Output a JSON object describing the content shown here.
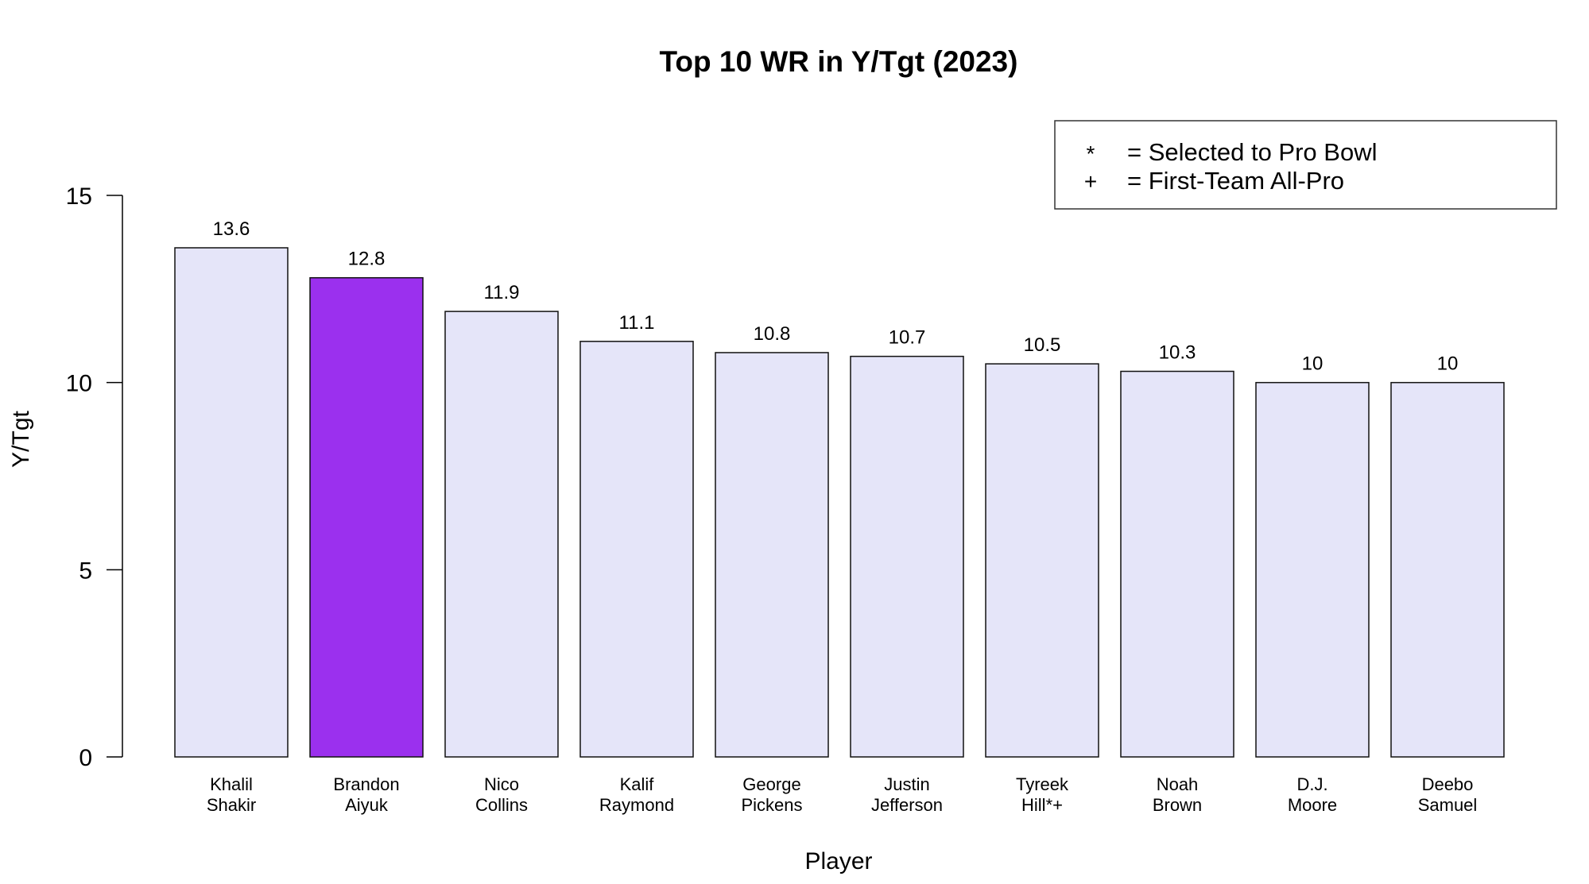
{
  "chart_data": {
    "type": "bar",
    "title": "Top 10 WR in Y/Tgt (2023)",
    "xlabel": "Player",
    "ylabel": "Y/Tgt",
    "ylim": [
      0,
      15
    ],
    "yticks": [
      0,
      5,
      10,
      15
    ],
    "categories": [
      [
        "Khalil",
        "Shakir"
      ],
      [
        "Brandon",
        "Aiyuk"
      ],
      [
        "Nico",
        "Collins"
      ],
      [
        "Kalif",
        "Raymond"
      ],
      [
        "George",
        "Pickens"
      ],
      [
        "Justin",
        "Jefferson"
      ],
      [
        "Tyreek",
        "Hill*+"
      ],
      [
        "Noah",
        "Brown"
      ],
      [
        "D.J.",
        "Moore"
      ],
      [
        "Deebo",
        "Samuel"
      ]
    ],
    "values": [
      13.6,
      12.8,
      11.9,
      11.1,
      10.8,
      10.7,
      10.5,
      10.3,
      10,
      10
    ],
    "value_labels": [
      "13.6",
      "12.8",
      "11.9",
      "11.1",
      "10.8",
      "10.7",
      "10.5",
      "10.3",
      "10",
      "10"
    ],
    "bar_colors": [
      "#e5e5f9",
      "#9b30ee",
      "#e5e5f9",
      "#e5e5f9",
      "#e5e5f9",
      "#e5e5f9",
      "#e5e5f9",
      "#e5e5f9",
      "#e5e5f9",
      "#e5e5f9"
    ],
    "highlight_color": "#9b30ee",
    "default_color": "#e5e5f9",
    "grid": false,
    "legend_position": "top-right",
    "legend": [
      {
        "symbol": "*",
        "text": "= Selected to Pro Bowl"
      },
      {
        "symbol": "+",
        "text": "= First-Team All-Pro"
      }
    ]
  }
}
